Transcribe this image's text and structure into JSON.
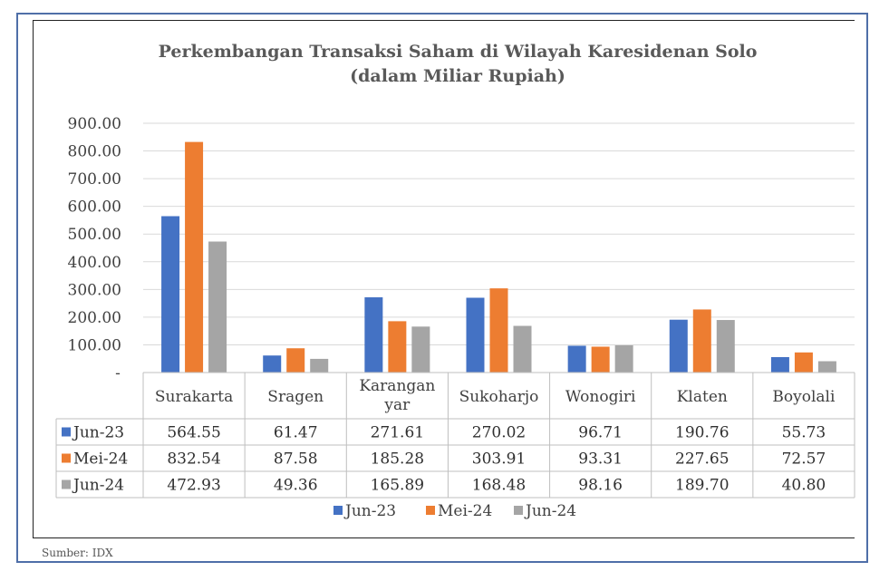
{
  "colors": {
    "Jun-23": "#4472c4",
    "Mei-24": "#ed7d31",
    "Jun-24": "#a5a5a5",
    "grid": "#d9d9d9",
    "frame": "#4f6fa8"
  },
  "chart_data": {
    "type": "bar",
    "title": "Perkembangan Transaksi Saham di Wilayah Karesidenan Solo",
    "subtitle": "(dalam Miliar Rupiah)",
    "xlabel": "",
    "ylabel": "",
    "ylim": [
      0,
      900
    ],
    "y_ticks": [
      "-",
      "100.00",
      "200.00",
      "300.00",
      "400.00",
      "500.00",
      "600.00",
      "700.00",
      "800.00",
      "900.00"
    ],
    "categories": [
      [
        "Surakarta"
      ],
      [
        "Sragen"
      ],
      [
        "Karangan",
        "yar"
      ],
      [
        "Sukoharjo"
      ],
      [
        "Wonogiri"
      ],
      [
        "Klaten"
      ],
      [
        "Boyolali"
      ]
    ],
    "series": [
      {
        "name": "Jun-23",
        "values": [
          564.55,
          61.47,
          271.61,
          270.02,
          96.71,
          190.76,
          55.73
        ],
        "labels": [
          "564.55",
          "61.47",
          "271.61",
          "270.02",
          "96.71",
          "190.76",
          "55.73"
        ]
      },
      {
        "name": "Mei-24",
        "values": [
          832.54,
          87.58,
          185.28,
          303.91,
          93.31,
          227.65,
          72.57
        ],
        "labels": [
          "832.54",
          "87.58",
          "185.28",
          "303.91",
          "93.31",
          "227.65",
          "72.57"
        ]
      },
      {
        "name": "Jun-24",
        "values": [
          472.93,
          49.36,
          165.89,
          168.48,
          98.16,
          189.7,
          40.8
        ],
        "labels": [
          "472.93",
          "49.36",
          "165.89",
          "168.48",
          "98.16",
          "189.70",
          "40.80"
        ]
      }
    ],
    "grid": true,
    "legend": "bottom",
    "data_table": true
  },
  "footer_text": "Sumber: IDX"
}
